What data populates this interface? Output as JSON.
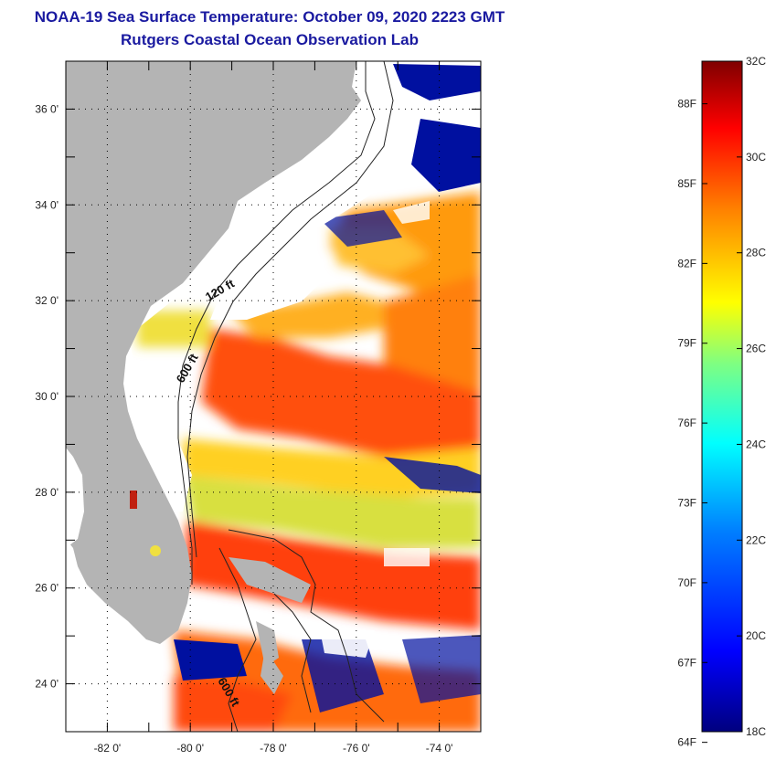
{
  "title": "NOAA-19 Sea Surface Temperature:  October 09, 2020 2223 GMT",
  "subtitle": "Rutgers Coastal Ocean Observation Lab",
  "map": {
    "lon_range": [
      -83,
      -73
    ],
    "lat_range": [
      23,
      37
    ],
    "lat_ticks": [
      {
        "value": 24,
        "label": "24 0'"
      },
      {
        "value": 26,
        "label": "26 0'"
      },
      {
        "value": 28,
        "label": "28 0'"
      },
      {
        "value": 30,
        "label": "30 0'"
      },
      {
        "value": 32,
        "label": "32 0'"
      },
      {
        "value": 34,
        "label": "34 0'"
      },
      {
        "value": 36,
        "label": "36 0'"
      }
    ],
    "lon_ticks": [
      {
        "value": -82,
        "label": "-82 0'"
      },
      {
        "value": -80,
        "label": "-80 0'"
      },
      {
        "value": -78,
        "label": "-78 0'"
      },
      {
        "value": -76,
        "label": "-76 0'"
      },
      {
        "value": -74,
        "label": "-74 0'"
      }
    ],
    "isobath_labels": [
      "120 ft",
      "600 ft",
      "600 ft"
    ],
    "colors": {
      "land": "#b4b4b4",
      "cloud": "#ffffff",
      "frame": "#000000"
    }
  },
  "colorbar": {
    "celsius_ticks": [
      {
        "value": 18,
        "label": "18C"
      },
      {
        "value": 20,
        "label": "20C"
      },
      {
        "value": 22,
        "label": "22C"
      },
      {
        "value": 24,
        "label": "24C"
      },
      {
        "value": 26,
        "label": "26C"
      },
      {
        "value": 28,
        "label": "28C"
      },
      {
        "value": 30,
        "label": "30C"
      },
      {
        "value": 32,
        "label": "32C"
      }
    ],
    "fahrenheit_ticks": [
      {
        "value": 64,
        "label": "64F"
      },
      {
        "value": 67,
        "label": "67F"
      },
      {
        "value": 70,
        "label": "70F"
      },
      {
        "value": 73,
        "label": "73F"
      },
      {
        "value": 76,
        "label": "76F"
      },
      {
        "value": 79,
        "label": "79F"
      },
      {
        "value": 82,
        "label": "82F"
      },
      {
        "value": 85,
        "label": "85F"
      },
      {
        "value": 88,
        "label": "88F"
      }
    ],
    "stops": [
      "#00007f",
      "#0000ff",
      "#0080ff",
      "#00ffff",
      "#80ff80",
      "#ffff00",
      "#ff8000",
      "#ff0000",
      "#7f0000"
    ]
  }
}
